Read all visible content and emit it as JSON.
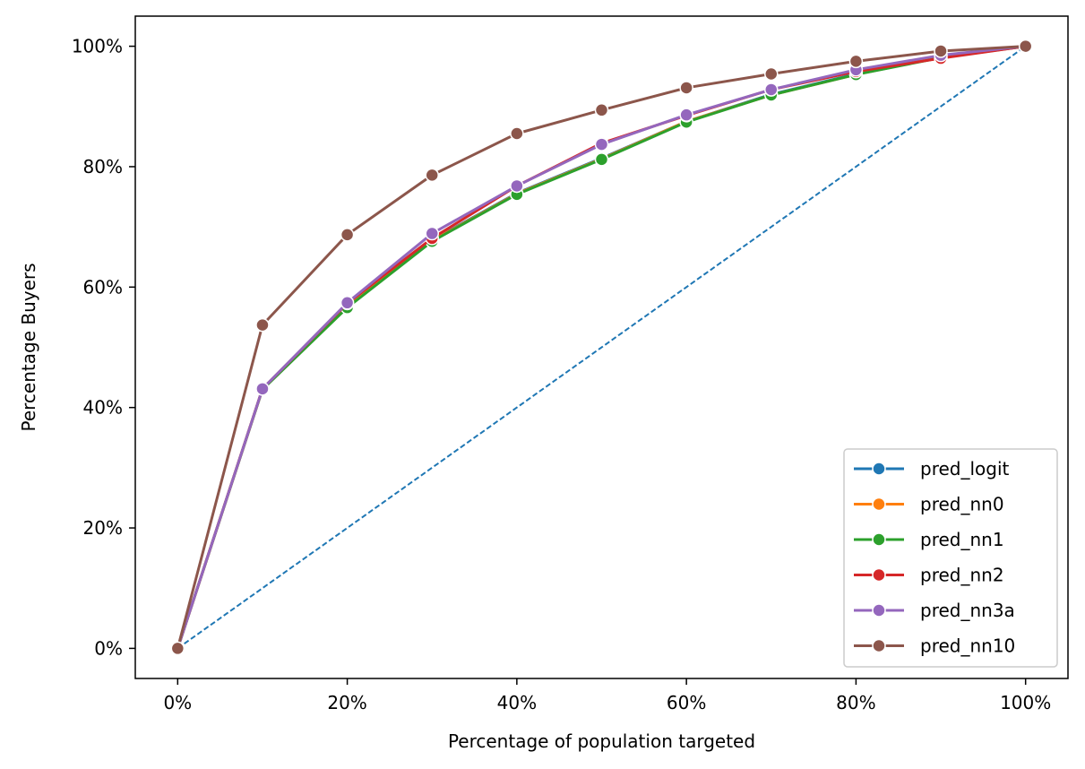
{
  "chart_data": {
    "type": "line",
    "title": "",
    "xlabel": "Percentage of population targeted",
    "ylabel": "Percentage Buyers",
    "xlim": [
      -5,
      105
    ],
    "ylim": [
      -5,
      105
    ],
    "x": [
      0,
      10,
      20,
      30,
      40,
      50,
      60,
      70,
      80,
      90,
      100
    ],
    "xticks": [
      0,
      20,
      40,
      60,
      80,
      100
    ],
    "yticks": [
      0,
      20,
      40,
      60,
      80,
      100
    ],
    "xtick_labels": [
      "0%",
      "20%",
      "40%",
      "60%",
      "80%",
      "100%"
    ],
    "ytick_labels": [
      "0%",
      "20%",
      "40%",
      "60%",
      "80%",
      "100%"
    ],
    "grid": false,
    "legend_position": "bottom-right",
    "series": [
      {
        "name": "pred_logit",
        "color": "#1f77b4",
        "values": [
          0,
          43.1,
          56.8,
          67.8,
          75.6,
          81.4,
          87.5,
          92.0,
          95.4,
          98.2,
          100
        ]
      },
      {
        "name": "pred_nn0",
        "color": "#ff7f0e",
        "values": [
          0,
          43.1,
          56.7,
          67.7,
          75.5,
          81.3,
          87.5,
          91.9,
          95.3,
          98.2,
          100
        ]
      },
      {
        "name": "pred_nn1",
        "color": "#2ca02c",
        "values": [
          0,
          43.0,
          56.6,
          67.6,
          75.4,
          81.2,
          87.4,
          91.9,
          95.3,
          98.1,
          100
        ]
      },
      {
        "name": "pred_nn2",
        "color": "#d62728",
        "values": [
          0,
          43.1,
          57.3,
          68.1,
          76.8,
          83.9,
          88.5,
          92.8,
          95.8,
          98.0,
          100
        ]
      },
      {
        "name": "pred_nn3a",
        "color": "#9467bd",
        "values": [
          0,
          43.1,
          57.4,
          68.9,
          76.8,
          83.7,
          88.6,
          92.8,
          96.1,
          98.5,
          100
        ]
      },
      {
        "name": "pred_nn10",
        "color": "#8c564b",
        "values": [
          0,
          53.7,
          68.7,
          78.6,
          85.5,
          89.4,
          93.1,
          95.4,
          97.5,
          99.2,
          100
        ]
      }
    ],
    "baseline": {
      "color": "#1f77b4",
      "style": "dashed",
      "points": [
        [
          0,
          0
        ],
        [
          100,
          100
        ]
      ]
    }
  }
}
